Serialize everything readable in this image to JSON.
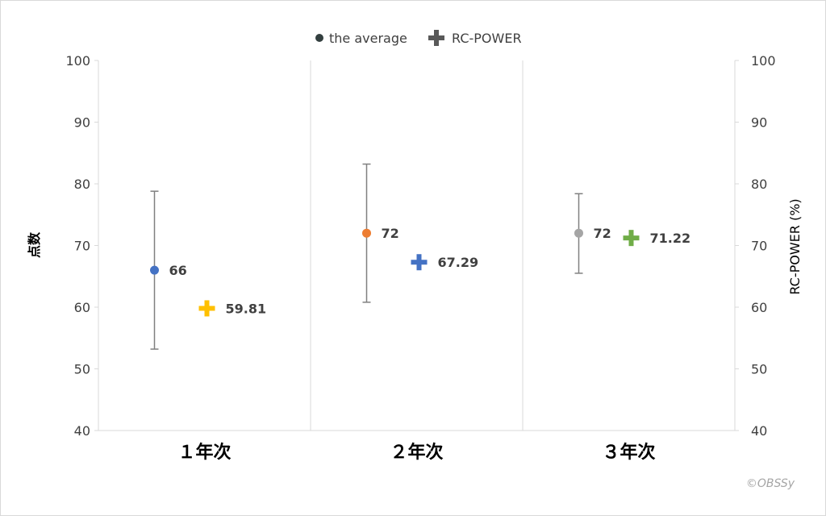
{
  "chart_data": {
    "type": "scatter",
    "categories": [
      "１年次",
      "２年次",
      "３年次"
    ],
    "series": [
      {
        "name": "the average",
        "values": [
          66,
          72,
          72
        ],
        "error_low": [
          53.2,
          60.8,
          65.5
        ],
        "error_high": [
          78.8,
          83.2,
          78.4
        ],
        "data_labels": [
          "66",
          "72",
          "72"
        ],
        "colors": [
          "#4472c4",
          "#ed7d31",
          "#a5a5a5"
        ],
        "legend_color": "#333f3f",
        "marker": "circle"
      },
      {
        "name": "RC-POWER",
        "values": [
          59.81,
          67.29,
          71.22
        ],
        "data_labels": [
          "59.81",
          "67.29",
          "71.22"
        ],
        "colors": [
          "#ffc000",
          "#4472c4",
          "#70ad47"
        ],
        "legend_color": "#595959",
        "marker": "plus"
      }
    ],
    "ylabel": "点数",
    "y2label": "RC-POWER (%)",
    "ylim": [
      40,
      100
    ],
    "y2lim": [
      40,
      100
    ],
    "yticks": [
      "40",
      "50",
      "60",
      "70",
      "80",
      "90",
      "100"
    ],
    "y2ticks": [
      "40",
      "50",
      "60",
      "70",
      "80",
      "90",
      "100"
    ],
    "legend_position": "top",
    "grid": false
  },
  "watermark": "©OBSSy"
}
